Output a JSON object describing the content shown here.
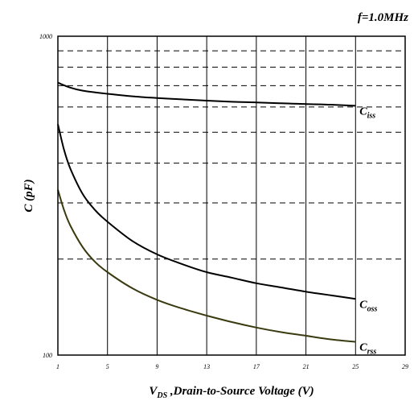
{
  "chart_data": {
    "type": "line",
    "annotation": "f=1.0MHz",
    "xlabel": {
      "main": "V",
      "sub": "DS",
      "rest": " ,Drain-to-Source Voltage (V)"
    },
    "ylabel": "C (pF)",
    "xlim": [
      1,
      29
    ],
    "ylim": [
      100,
      1000
    ],
    "y_scale": "log",
    "x_ticks": [
      1,
      5,
      9,
      13,
      17,
      21,
      25,
      29
    ],
    "x_tick_labels": [
      "1",
      "5",
      "9",
      "13",
      "17",
      "21",
      "25",
      "29"
    ],
    "y_ticks": [
      100,
      1000
    ],
    "y_tick_labels": [
      "100",
      "1000"
    ],
    "grid": {
      "vertical": "solid",
      "horizontal": "dashed"
    },
    "h_grid_values": [
      200,
      300,
      400,
      500,
      600,
      700,
      800,
      900
    ],
    "series": [
      {
        "name": "Ciss",
        "label": {
          "main": "C",
          "sub": "iss"
        },
        "color": "#000000",
        "x": [
          1,
          2,
          3,
          5,
          7,
          9,
          11,
          13,
          15,
          17,
          19,
          21,
          23,
          25
        ],
        "y": [
          715,
          690,
          675,
          660,
          648,
          640,
          634,
          628,
          623,
          620,
          616,
          613,
          610,
          605
        ]
      },
      {
        "name": "Coss",
        "label": {
          "main": "C",
          "sub": "oss"
        },
        "color": "#000000",
        "x": [
          1,
          1.5,
          2,
          3,
          4,
          5,
          7,
          9,
          11,
          13,
          15,
          17,
          19,
          21,
          23,
          25
        ],
        "y": [
          530,
          440,
          385,
          320,
          285,
          262,
          228,
          207,
          193,
          182,
          175,
          168,
          163,
          158,
          154,
          150
        ]
      },
      {
        "name": "Crss",
        "label": {
          "main": "C",
          "sub": "rss"
        },
        "color": "#3a3a10",
        "x": [
          1,
          1.5,
          2,
          3,
          4,
          5,
          7,
          9,
          11,
          13,
          15,
          17,
          19,
          21,
          23,
          25
        ],
        "y": [
          330,
          285,
          255,
          218,
          196,
          182,
          162,
          149,
          140,
          133,
          127,
          122,
          118,
          115,
          112,
          110
        ]
      }
    ]
  }
}
